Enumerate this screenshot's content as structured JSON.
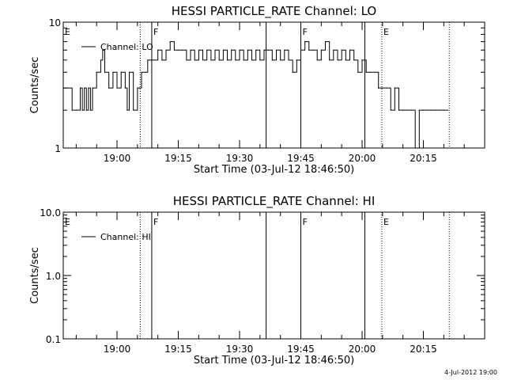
{
  "footer": {
    "timestamp": "4-Jul-2012 19:00"
  },
  "chart_data": [
    {
      "type": "line",
      "title": "HESSI PARTICLE_RATE Channel: LO",
      "xlabel": "Start Time (03-Jul-12 18:46:50)",
      "ylabel": "Counts/sec",
      "y_scale": "log",
      "ylim": [
        1,
        10
      ],
      "y_ticks": [
        1,
        10
      ],
      "y_tick_labels": [
        "1",
        "10"
      ],
      "xlim": [
        "18:46:50",
        "20:30:00"
      ],
      "x_ticks": [
        "19:00",
        "19:15",
        "19:30",
        "19:45",
        "20:00",
        "20:15"
      ],
      "legend": {
        "position": "top-left",
        "entries": [
          "Channel: LO"
        ]
      },
      "grid": false,
      "line_color": "#000000",
      "markers": [
        {
          "label": "E",
          "time": "18:46:50",
          "style": "none"
        },
        {
          "label": "",
          "time": "19:05:40",
          "style": "dotted"
        },
        {
          "label": "F",
          "time": "19:08:30",
          "style": "solid"
        },
        {
          "label": "",
          "time": "19:36:30",
          "style": "solid"
        },
        {
          "label": "F",
          "time": "19:45:00",
          "style": "solid"
        },
        {
          "label": "",
          "time": "20:00:40",
          "style": "solid"
        },
        {
          "label": "E",
          "time": "20:04:50",
          "style": "dotted"
        },
        {
          "label": "",
          "time": "20:21:20",
          "style": "dotted"
        }
      ],
      "series": [
        {
          "values": [
            [
              "18:47:00",
              3
            ],
            [
              "18:48:00",
              3
            ],
            [
              "18:49:00",
              2
            ],
            [
              "18:50:00",
              2
            ],
            [
              "18:51:00",
              3
            ],
            [
              "18:51:30",
              2
            ],
            [
              "18:52:00",
              3
            ],
            [
              "18:52:30",
              2
            ],
            [
              "18:53:00",
              3
            ],
            [
              "18:53:30",
              2
            ],
            [
              "18:54:00",
              3
            ],
            [
              "18:55:00",
              4
            ],
            [
              "18:56:00",
              5
            ],
            [
              "18:56:30",
              6
            ],
            [
              "18:57:00",
              4
            ],
            [
              "18:58:00",
              3
            ],
            [
              "18:59:00",
              4
            ],
            [
              "19:00:00",
              3
            ],
            [
              "19:01:00",
              4
            ],
            [
              "19:02:00",
              3
            ],
            [
              "19:02:30",
              2
            ],
            [
              "19:03:00",
              4
            ],
            [
              "19:04:00",
              2
            ],
            [
              "19:05:00",
              3
            ],
            [
              "19:05:30",
              3
            ],
            [
              "19:06:00",
              4
            ],
            [
              "19:07:00",
              4
            ],
            [
              "19:07:30",
              5
            ],
            [
              "19:08:00",
              5
            ],
            [
              "19:09:00",
              5
            ],
            [
              "19:10:00",
              6
            ],
            [
              "19:11:00",
              5
            ],
            [
              "19:12:00",
              6
            ],
            [
              "19:13:00",
              7
            ],
            [
              "19:14:00",
              6
            ],
            [
              "19:15:00",
              6
            ],
            [
              "19:16:00",
              6
            ],
            [
              "19:17:00",
              5
            ],
            [
              "19:18:00",
              6
            ],
            [
              "19:19:00",
              5
            ],
            [
              "19:20:00",
              6
            ],
            [
              "19:21:00",
              5
            ],
            [
              "19:22:00",
              6
            ],
            [
              "19:23:00",
              5
            ],
            [
              "19:24:00",
              6
            ],
            [
              "19:25:00",
              5
            ],
            [
              "19:26:00",
              6
            ],
            [
              "19:27:00",
              5
            ],
            [
              "19:28:00",
              6
            ],
            [
              "19:29:00",
              5
            ],
            [
              "19:30:00",
              6
            ],
            [
              "19:31:00",
              5
            ],
            [
              "19:32:00",
              6
            ],
            [
              "19:33:00",
              5
            ],
            [
              "19:34:00",
              6
            ],
            [
              "19:35:00",
              5
            ],
            [
              "19:36:00",
              6
            ],
            [
              "19:37:00",
              6
            ],
            [
              "19:38:00",
              5
            ],
            [
              "19:39:00",
              6
            ],
            [
              "19:40:00",
              5
            ],
            [
              "19:41:00",
              6
            ],
            [
              "19:42:00",
              5
            ],
            [
              "19:43:00",
              4
            ],
            [
              "19:44:00",
              5
            ],
            [
              "19:45:00",
              6
            ],
            [
              "19:46:00",
              7
            ],
            [
              "19:47:00",
              6
            ],
            [
              "19:48:00",
              6
            ],
            [
              "19:49:00",
              5
            ],
            [
              "19:50:00",
              6
            ],
            [
              "19:51:00",
              7
            ],
            [
              "19:52:00",
              5
            ],
            [
              "19:53:00",
              6
            ],
            [
              "19:54:00",
              5
            ],
            [
              "19:55:00",
              6
            ],
            [
              "19:56:00",
              5
            ],
            [
              "19:57:00",
              6
            ],
            [
              "19:58:00",
              5
            ],
            [
              "19:59:00",
              4
            ],
            [
              "20:00:00",
              5
            ],
            [
              "20:01:00",
              4
            ],
            [
              "20:02:00",
              4
            ],
            [
              "20:03:00",
              4
            ],
            [
              "20:04:00",
              3
            ],
            [
              "20:05:00",
              3
            ],
            [
              "20:06:00",
              3
            ],
            [
              "20:07:00",
              2
            ],
            [
              "20:08:00",
              3
            ],
            [
              "20:09:00",
              2
            ],
            [
              "20:10:00",
              2
            ],
            [
              "20:11:00",
              2
            ],
            [
              "20:12:00",
              2
            ],
            [
              "20:13:00",
              1
            ],
            [
              "20:14:00",
              2
            ],
            [
              "20:15:00",
              2
            ],
            [
              "20:16:00",
              2
            ],
            [
              "20:17:00",
              2
            ],
            [
              "20:18:00",
              2
            ],
            [
              "20:19:00",
              2
            ],
            [
              "20:20:00",
              2
            ],
            [
              "20:21:00",
              2
            ]
          ]
        }
      ]
    },
    {
      "type": "line",
      "title": "HESSI PARTICLE_RATE Channel: HI",
      "xlabel": "Start Time (03-Jul-12 18:46:50)",
      "ylabel": "Counts/sec",
      "y_scale": "log",
      "ylim": [
        0.1,
        10
      ],
      "y_ticks": [
        0.1,
        1,
        10
      ],
      "y_tick_labels": [
        "0.1",
        "1.0",
        "10.0"
      ],
      "xlim": [
        "18:46:50",
        "20:30:00"
      ],
      "x_ticks": [
        "19:00",
        "19:15",
        "19:30",
        "19:45",
        "20:00",
        "20:15"
      ],
      "legend": {
        "position": "top-left",
        "entries": [
          "Channel: HI"
        ]
      },
      "grid": false,
      "line_color": "#000000",
      "markers": [
        {
          "label": "E",
          "time": "18:46:50",
          "style": "none"
        },
        {
          "label": "",
          "time": "19:05:40",
          "style": "dotted"
        },
        {
          "label": "F",
          "time": "19:08:30",
          "style": "solid"
        },
        {
          "label": "",
          "time": "19:36:30",
          "style": "solid"
        },
        {
          "label": "F",
          "time": "19:45:00",
          "style": "solid"
        },
        {
          "label": "",
          "time": "20:00:40",
          "style": "solid"
        },
        {
          "label": "E",
          "time": "20:04:50",
          "style": "dotted"
        },
        {
          "label": "",
          "time": "20:21:20",
          "style": "dotted"
        }
      ],
      "series": [
        {
          "values": []
        }
      ]
    }
  ]
}
